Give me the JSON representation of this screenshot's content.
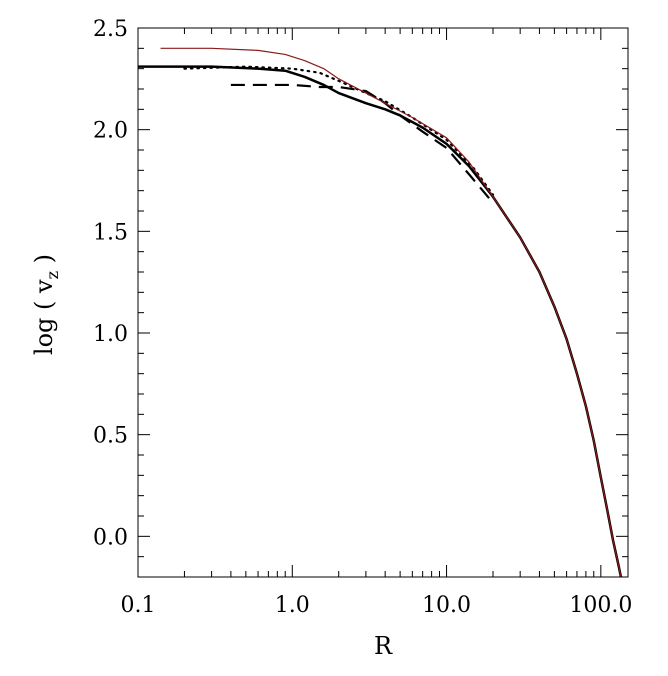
{
  "chart_data": {
    "type": "line",
    "xlabel": "R",
    "ylabel": {
      "prefix": "log ( v",
      "subscript": "z",
      "suffix": " )"
    },
    "xscale": "log",
    "xlim": [
      0.1,
      150
    ],
    "ylim": [
      -0.2,
      2.5
    ],
    "grid": false,
    "legend": "none",
    "x_ticks": [
      {
        "value": 0.1,
        "label": "0.1"
      },
      {
        "value": 1,
        "label": "1.0"
      },
      {
        "value": 10,
        "label": "10.0"
      },
      {
        "value": 100,
        "label": "100.0"
      }
    ],
    "y_ticks": [
      {
        "value": 0.0,
        "label": "0.0"
      },
      {
        "value": 0.5,
        "label": "0.5"
      },
      {
        "value": 1.0,
        "label": "1.0"
      },
      {
        "value": 1.5,
        "label": "1.5"
      },
      {
        "value": 2.0,
        "label": "2.0"
      },
      {
        "value": 2.5,
        "label": "2.5"
      }
    ],
    "series": [
      {
        "style": "solid-thick",
        "color": "#000000",
        "points": [
          [
            0.1,
            2.31
          ],
          [
            0.3,
            2.31
          ],
          [
            0.6,
            2.3
          ],
          [
            0.9,
            2.29
          ],
          [
            1.2,
            2.26
          ],
          [
            1.6,
            2.22
          ],
          [
            2.0,
            2.18
          ],
          [
            3.0,
            2.13
          ],
          [
            4.0,
            2.1
          ],
          [
            5.0,
            2.07
          ],
          [
            7.0,
            2.01
          ],
          [
            10,
            1.93
          ],
          [
            14,
            1.82
          ],
          [
            20,
            1.67
          ],
          [
            30,
            1.47
          ],
          [
            40,
            1.3
          ],
          [
            50,
            1.13
          ],
          [
            60,
            0.97
          ],
          [
            70,
            0.8
          ],
          [
            80,
            0.64
          ],
          [
            90,
            0.47
          ],
          [
            100,
            0.29
          ],
          [
            110,
            0.13
          ],
          [
            120,
            -0.02
          ],
          [
            130,
            -0.14
          ],
          [
            135,
            -0.2
          ]
        ]
      },
      {
        "style": "dashed",
        "color": "#000000",
        "points": [
          [
            0.4,
            2.22
          ],
          [
            1.0,
            2.22
          ],
          [
            1.5,
            2.21
          ],
          [
            2.0,
            2.21
          ],
          [
            3.0,
            2.19
          ],
          [
            4.0,
            2.13
          ],
          [
            5.0,
            2.07
          ],
          [
            7.0,
            1.99
          ],
          [
            10,
            1.91
          ],
          [
            14,
            1.78
          ],
          [
            20,
            1.64
          ]
        ]
      },
      {
        "style": "dotted",
        "color": "#000000",
        "points": [
          [
            0.2,
            2.3
          ],
          [
            0.5,
            2.31
          ],
          [
            1.0,
            2.3
          ],
          [
            1.5,
            2.28
          ],
          [
            2.0,
            2.24
          ],
          [
            3.0,
            2.18
          ],
          [
            4.0,
            2.14
          ],
          [
            6.0,
            2.06
          ],
          [
            10,
            1.95
          ],
          [
            15,
            1.81
          ],
          [
            20,
            1.68
          ]
        ]
      },
      {
        "style": "solid-thin",
        "color": "#8b1a1a",
        "points": [
          [
            0.14,
            2.4
          ],
          [
            0.3,
            2.4
          ],
          [
            0.6,
            2.39
          ],
          [
            0.9,
            2.37
          ],
          [
            1.2,
            2.34
          ],
          [
            1.6,
            2.3
          ],
          [
            2.0,
            2.25
          ],
          [
            3.0,
            2.18
          ],
          [
            4.0,
            2.13
          ],
          [
            6.0,
            2.06
          ],
          [
            10,
            1.96
          ],
          [
            14,
            1.84
          ],
          [
            20,
            1.67
          ],
          [
            30,
            1.47
          ],
          [
            40,
            1.3
          ],
          [
            50,
            1.13
          ],
          [
            60,
            0.97
          ],
          [
            70,
            0.8
          ],
          [
            80,
            0.64
          ],
          [
            90,
            0.47
          ],
          [
            100,
            0.29
          ],
          [
            110,
            0.13
          ],
          [
            120,
            -0.02
          ],
          [
            130,
            -0.14
          ],
          [
            135,
            -0.2
          ]
        ]
      }
    ]
  }
}
